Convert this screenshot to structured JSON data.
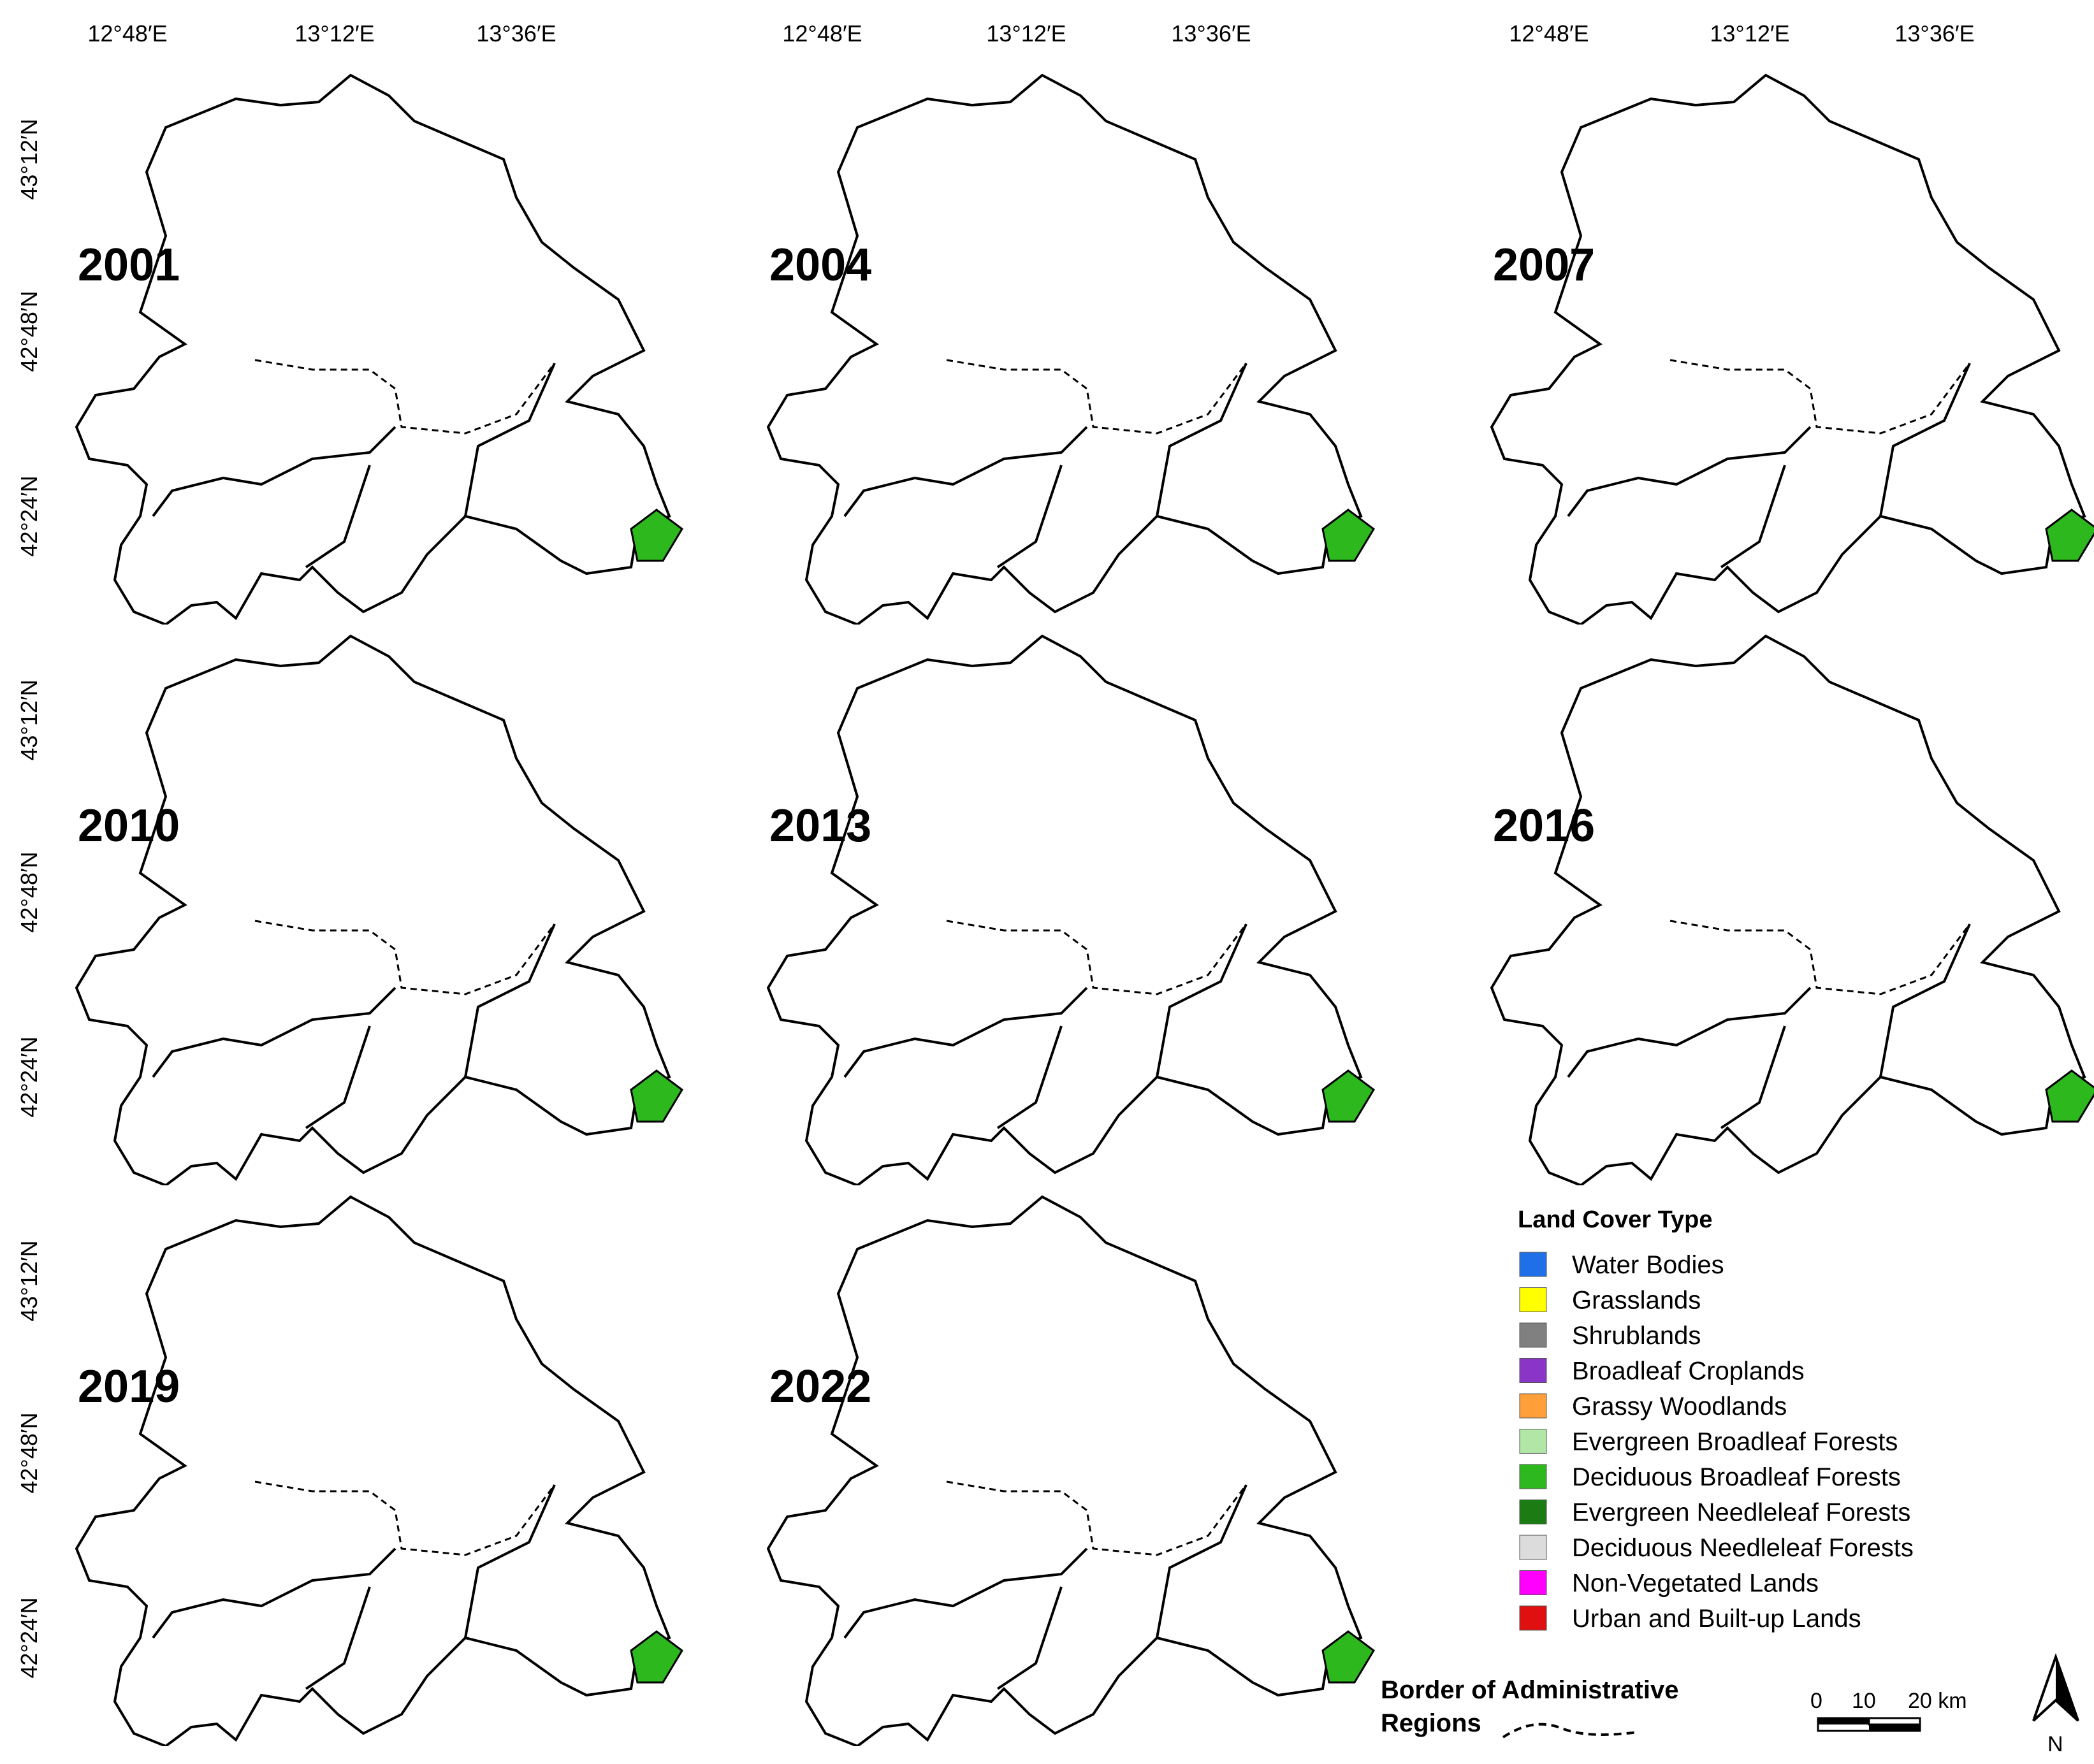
{
  "panels": [
    {
      "year": "2001"
    },
    {
      "year": "2004"
    },
    {
      "year": "2007"
    },
    {
      "year": "2010"
    },
    {
      "year": "2013"
    },
    {
      "year": "2016"
    },
    {
      "year": "2019"
    },
    {
      "year": "2022"
    }
  ],
  "lon_labels": [
    "12°48′E",
    "13°12′E",
    "13°36′E"
  ],
  "lat_labels": [
    "43°12′N",
    "42°48′N",
    "42°24′N"
  ],
  "legend": {
    "title": "Land Cover Type",
    "items": [
      {
        "label": "Water Bodies",
        "color": "#1f6fe8"
      },
      {
        "label": "Grasslands",
        "color": "#ffff00"
      },
      {
        "label": "Shrublands",
        "color": "#808080"
      },
      {
        "label": "Broadleaf Croplands",
        "color": "#8a35c8"
      },
      {
        "label": "Grassy Woodlands",
        "color": "#ff9f3a"
      },
      {
        "label": "Evergreen Broadleaf Forests",
        "color": "#b2e6a6"
      },
      {
        "label": "Deciduous Broadleaf Forests",
        "color": "#2db81e"
      },
      {
        "label": "Evergreen Needleleaf Forests",
        "color": "#1c7c14"
      },
      {
        "label": "Deciduous Needleleaf Forests",
        "color": "#dcdcdc"
      },
      {
        "label": "Non-Vegetated Lands",
        "color": "#ff00ff"
      },
      {
        "label": "Urban and Built-up Lands",
        "color": "#e01010"
      }
    ]
  },
  "border": {
    "line1": "Border of Administrative",
    "line2": "Regions"
  },
  "scale": {
    "labels": [
      "0",
      "10",
      "20 km"
    ]
  },
  "north": "N"
}
